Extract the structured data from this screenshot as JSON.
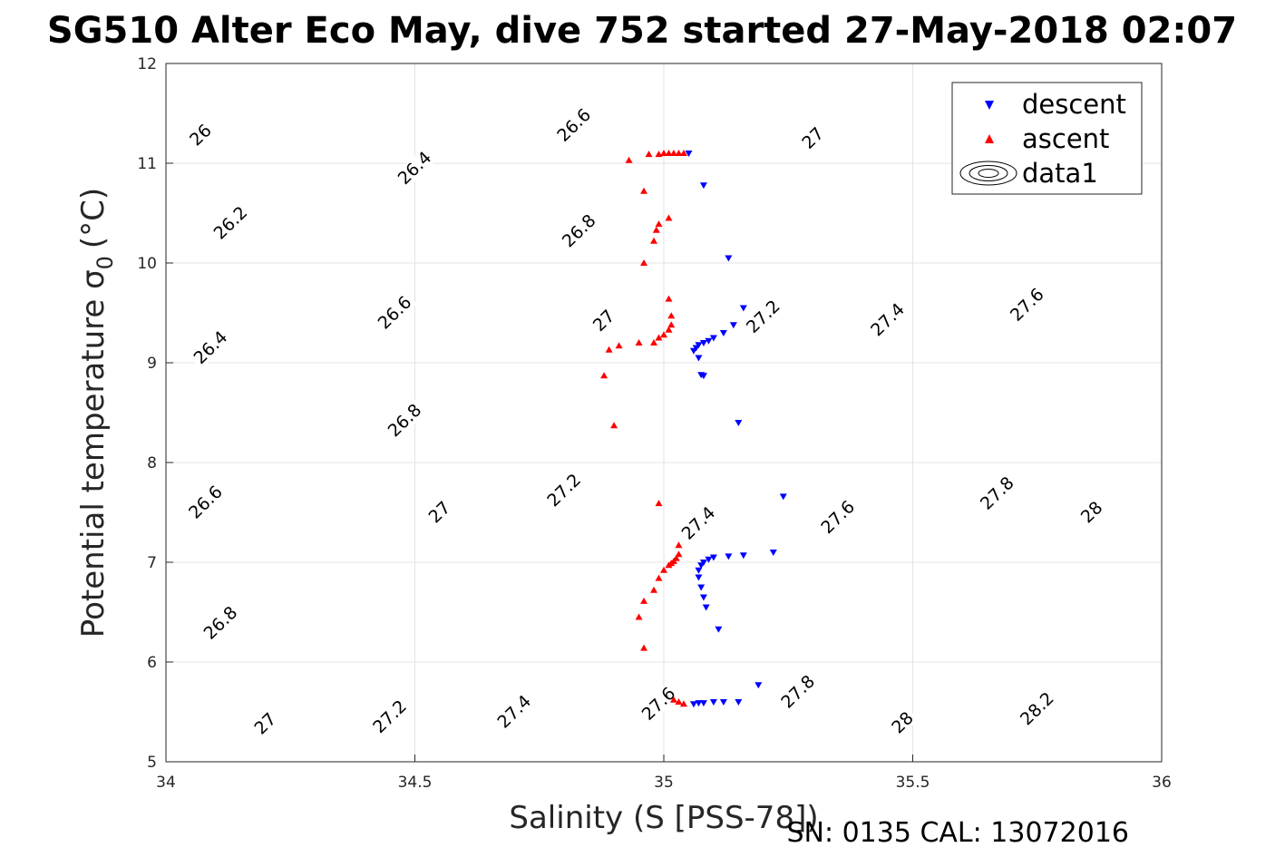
{
  "title": "SG510 Alter Eco May, dive 752 started 27-May-2018 02:07",
  "footer": "SN: 0135  CAL: 13072016",
  "colors": {
    "descent": "#0000ff",
    "ascent": "#ff0000",
    "contour": "#000000",
    "grid": "#e3e3e3"
  },
  "chart_data": {
    "type": "scatter",
    "title": "SG510 Alter Eco May, dive 752 started 27-May-2018 02:07",
    "xlabel": "Salinity (S [PSS-78])",
    "ylabel": "Potential temperature σ",
    "ylabel_sub": "0",
    "ylabel_unit": "(°C)",
    "xlim": [
      34,
      36
    ],
    "ylim": [
      5,
      12
    ],
    "xticks": [
      "34",
      "34.5",
      "35",
      "35.5",
      "36"
    ],
    "xtick_values": [
      34,
      34.5,
      35,
      35.5,
      36
    ],
    "yticks": [
      "5",
      "6",
      "7",
      "8",
      "9",
      "10",
      "11",
      "12"
    ],
    "ytick_values": [
      5,
      6,
      7,
      8,
      9,
      10,
      11,
      12
    ],
    "grid": true,
    "legend": {
      "placement": "top-right",
      "entries": [
        "descent",
        "ascent",
        "data1"
      ]
    },
    "contours": {
      "quantity": "sigma0",
      "levels": [
        26.0,
        26.2,
        26.4,
        26.6,
        26.8,
        27.0,
        27.2,
        27.4,
        27.6,
        27.8,
        28.0,
        28.2
      ],
      "labels": [
        {
          "text": "26",
          "s": 34.07,
          "t": 11.28
        },
        {
          "text": "26.2",
          "s": 34.13,
          "t": 10.4
        },
        {
          "text": "26.4",
          "s": 34.5,
          "t": 10.95
        },
        {
          "text": "26.6",
          "s": 34.82,
          "t": 11.38
        },
        {
          "text": "26.4",
          "s": 34.09,
          "t": 9.15
        },
        {
          "text": "26.6",
          "s": 34.46,
          "t": 9.5
        },
        {
          "text": "26.8",
          "s": 34.83,
          "t": 10.32
        },
        {
          "text": "27",
          "s": 35.3,
          "t": 11.25
        },
        {
          "text": "26.6",
          "s": 34.08,
          "t": 7.6
        },
        {
          "text": "26.8",
          "s": 34.48,
          "t": 8.42
        },
        {
          "text": "27",
          "s": 34.88,
          "t": 9.42
        },
        {
          "text": "27.2",
          "s": 35.2,
          "t": 9.46
        },
        {
          "text": "27.4",
          "s": 35.45,
          "t": 9.43
        },
        {
          "text": "27.6",
          "s": 35.73,
          "t": 9.58
        },
        {
          "text": "26.8",
          "s": 34.11,
          "t": 6.39
        },
        {
          "text": "27",
          "s": 34.55,
          "t": 7.5
        },
        {
          "text": "27.2",
          "s": 34.8,
          "t": 7.72
        },
        {
          "text": "27.4",
          "s": 35.07,
          "t": 7.39
        },
        {
          "text": "27.6",
          "s": 35.35,
          "t": 7.45
        },
        {
          "text": "27.8",
          "s": 35.67,
          "t": 7.69
        },
        {
          "text": "28",
          "s": 35.86,
          "t": 7.5
        },
        {
          "text": "27",
          "s": 34.2,
          "t": 5.38
        },
        {
          "text": "27.2",
          "s": 34.45,
          "t": 5.45
        },
        {
          "text": "27.4",
          "s": 34.7,
          "t": 5.5
        },
        {
          "text": "27.6",
          "s": 34.99,
          "t": 5.58
        },
        {
          "text": "27.8",
          "s": 35.27,
          "t": 5.7
        },
        {
          "text": "28",
          "s": 35.48,
          "t": 5.39
        },
        {
          "text": "28.2",
          "s": 35.75,
          "t": 5.53
        }
      ]
    },
    "series": [
      {
        "name": "descent",
        "marker": "triangle-down",
        "x": [
          35.05,
          35.08,
          35.13,
          35.16,
          35.14,
          35.12,
          35.1,
          35.09,
          35.08,
          35.07,
          35.065,
          35.06,
          35.07,
          35.075,
          35.08,
          35.15,
          35.24,
          35.22,
          35.16,
          35.13,
          35.1,
          35.09,
          35.08,
          35.075,
          35.07,
          35.07,
          35.075,
          35.08,
          35.085,
          35.11,
          35.19,
          35.15,
          35.12,
          35.1,
          35.08,
          35.07,
          35.06
        ],
        "y": [
          11.1,
          10.78,
          10.05,
          9.55,
          9.38,
          9.3,
          9.25,
          9.22,
          9.2,
          9.18,
          9.15,
          9.12,
          9.05,
          8.88,
          8.87,
          8.4,
          7.66,
          7.1,
          7.07,
          7.06,
          7.05,
          7.03,
          7.0,
          6.97,
          6.92,
          6.85,
          6.75,
          6.65,
          6.55,
          6.33,
          5.77,
          5.6,
          5.6,
          5.6,
          5.59,
          5.59,
          5.58
        ]
      },
      {
        "name": "ascent",
        "marker": "triangle-up",
        "x": [
          35.04,
          35.03,
          35.02,
          35.01,
          35.0,
          34.99,
          34.97,
          34.93,
          34.96,
          34.99,
          35.01,
          34.985,
          34.98,
          34.96,
          35.01,
          35.015,
          35.015,
          35.01,
          35.0,
          34.99,
          34.98,
          34.95,
          34.91,
          34.89,
          34.88,
          34.9,
          34.99,
          35.03,
          35.03,
          35.025,
          35.02,
          35.015,
          35.01,
          35.0,
          34.99,
          34.98,
          34.96,
          34.95,
          34.96,
          35.02,
          35.03,
          35.04
        ],
        "y": [
          11.1,
          11.1,
          11.1,
          11.1,
          11.1,
          11.09,
          11.09,
          11.03,
          10.72,
          10.39,
          10.45,
          10.33,
          10.22,
          10.0,
          9.64,
          9.47,
          9.38,
          9.33,
          9.28,
          9.25,
          9.2,
          9.2,
          9.17,
          9.13,
          8.87,
          8.37,
          7.59,
          7.17,
          7.08,
          7.04,
          7.01,
          6.99,
          6.97,
          6.92,
          6.84,
          6.72,
          6.61,
          6.45,
          6.14,
          5.62,
          5.6,
          5.58
        ]
      }
    ]
  }
}
